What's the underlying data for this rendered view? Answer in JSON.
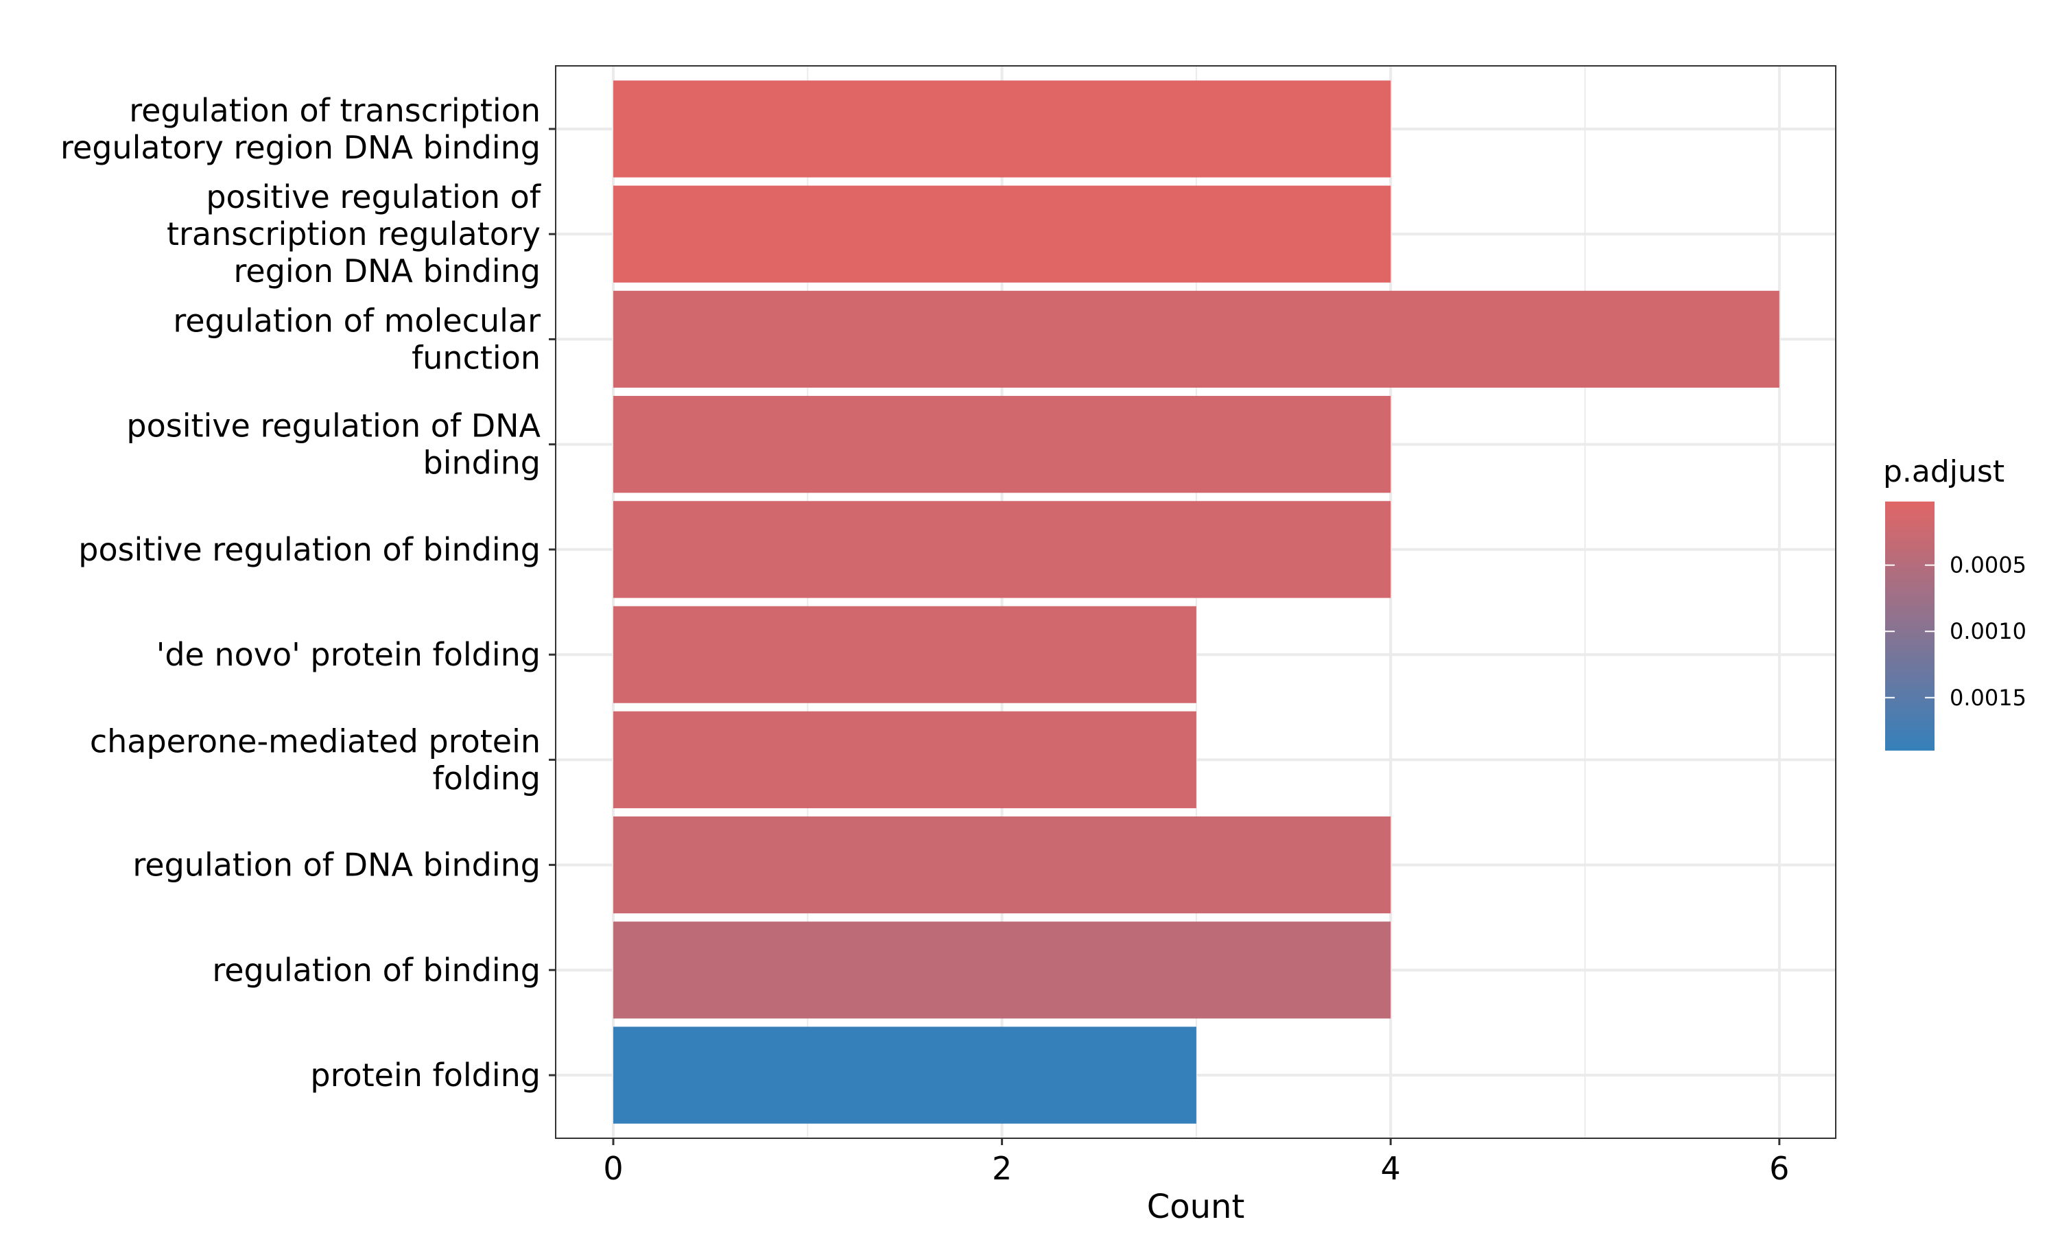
{
  "chart_data": {
    "type": "bar",
    "orientation": "horizontal",
    "xlabel": "Count",
    "ylabel": "",
    "xlim": [
      0,
      6.3
    ],
    "x_ticks": [
      0,
      2,
      4,
      6
    ],
    "grid": true,
    "categories": [
      [
        "regulation of transcription",
        "regulatory region DNA binding"
      ],
      [
        "positive regulation of",
        "transcription regulatory",
        "region DNA binding"
      ],
      [
        "regulation of molecular",
        "function"
      ],
      [
        "positive regulation of DNA",
        "binding"
      ],
      [
        "positive regulation of binding"
      ],
      [
        "'de novo' protein folding"
      ],
      [
        "chaperone-mediated protein",
        "folding"
      ],
      [
        "regulation of DNA binding"
      ],
      [
        "regulation of binding"
      ],
      [
        "protein folding"
      ]
    ],
    "values": [
      4,
      4,
      6,
      4,
      4,
      3,
      3,
      4,
      4,
      3
    ],
    "p_adjust": [
      2e-05,
      2e-05,
      0.0002,
      0.0002,
      0.0002,
      0.0002,
      0.0002,
      0.00025,
      0.0004,
      0.0019
    ],
    "legend": {
      "title": "p.adjust",
      "position": "right",
      "ticks": [
        "0.0005",
        "0.0010",
        "0.0015"
      ],
      "tick_values": [
        0.0005,
        0.001,
        0.0015
      ],
      "range": [
        2e-05,
        0.0019
      ],
      "color_low_p": "#e06666",
      "color_high_p": "#3580bb"
    }
  }
}
